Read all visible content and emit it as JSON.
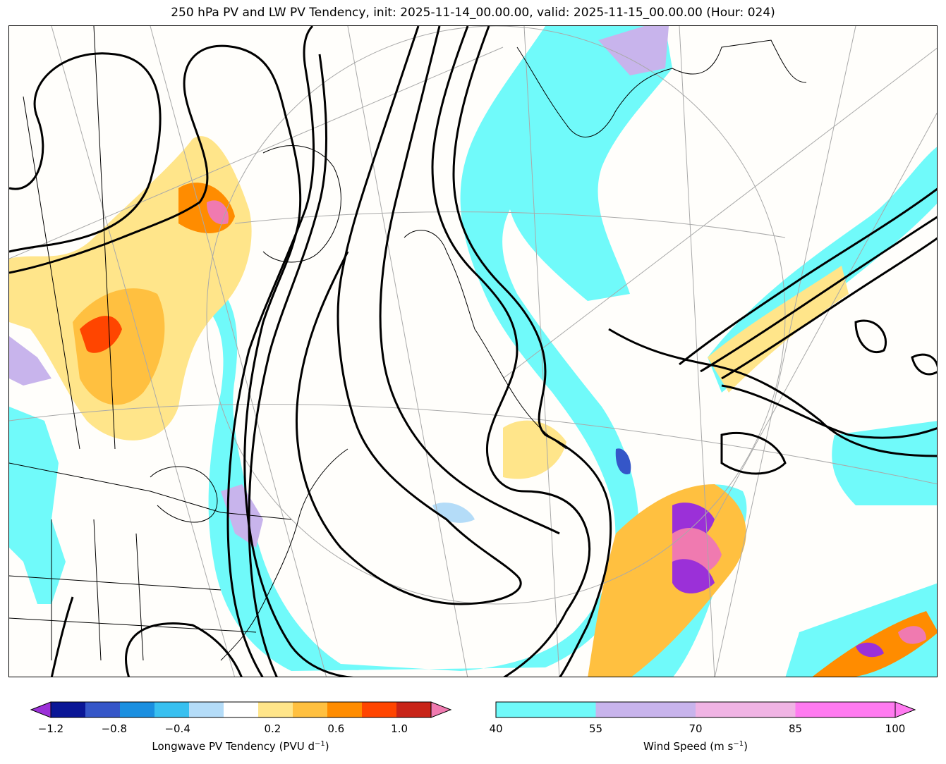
{
  "title": "250 hPa PV and LW PV Tendency, init: 2025-11-14_00.00.00, valid: 2025-11-15_00.00.00 (Hour: 024)",
  "pv_colorbar": {
    "label": "Longwave PV Tendency (PVU d",
    "label_sup": "−1",
    "label_end": ")",
    "ticks": [
      "−1.2",
      "−0.8",
      "−0.4",
      "0.2",
      "0.6",
      "1.0"
    ],
    "tick_values": [
      -1.2,
      -0.8,
      -0.4,
      0.2,
      0.6,
      1.0
    ],
    "range": [
      -1.2,
      1.2
    ],
    "colors": [
      "#9b30d8",
      "#0a1696",
      "#3556c8",
      "#1a8fe0",
      "#38c0f0",
      "#b4dcf8",
      "#ffffff",
      "#ffe58a",
      "#ffc040",
      "#ff8c00",
      "#ff4500",
      "#c82418",
      "#f07ab0"
    ]
  },
  "wind_colorbar": {
    "label": "Wind Speed (m s",
    "label_sup": "−1",
    "label_end": ")",
    "ticks": [
      "40",
      "55",
      "70",
      "85",
      "100"
    ],
    "colors": [
      "#70fafa",
      "#c8b4ec",
      "#f0b4e4",
      "#ff7af0"
    ]
  },
  "map_colors": {
    "jet": "#70fafa",
    "jet_strong": "#c8b4ec",
    "land": "#fffefb",
    "pv_contour": "#000000",
    "graticule": "#a9a9a9"
  }
}
